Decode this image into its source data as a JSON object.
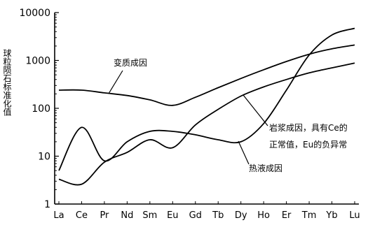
{
  "chart_data": {
    "type": "line",
    "title": "",
    "xlabel": "",
    "ylabel": "球粒陨石标准化值",
    "yscale": "log",
    "ylim": [
      1,
      10000
    ],
    "y_ticks": [
      "1",
      "10",
      "100",
      "1000",
      "10000"
    ],
    "categories": [
      "La",
      "Ce",
      "Pr",
      "Nd",
      "Sm",
      "Eu",
      "Gd",
      "Tb",
      "Dy",
      "Ho",
      "Er",
      "Tm",
      "Yb",
      "Lu"
    ],
    "series": [
      {
        "name": "变质成因",
        "values": [
          240,
          240,
          210,
          185,
          150,
          115,
          170,
          270,
          420,
          640,
          950,
          1350,
          1750,
          2100
        ]
      },
      {
        "name": "岩浆成因，具有Ce的正常值，Eu的负异常",
        "values": [
          3.3,
          2.6,
          7.5,
          12,
          22,
          15,
          45,
          95,
          180,
          280,
          400,
          550,
          700,
          880
        ]
      },
      {
        "name": "热液成因",
        "values": [
          5,
          40,
          8,
          20,
          33,
          33,
          28,
          22,
          20,
          48,
          240,
          1300,
          3400,
          4700
        ]
      }
    ],
    "annotations": [
      {
        "text": "变质成因",
        "series": 0
      },
      {
        "text": "岩浆成因，具有Ce的\n正常值，Eu的负异常",
        "series": 1
      },
      {
        "text": "热液成因",
        "series": 2
      }
    ],
    "grid": false,
    "legend": "none"
  }
}
